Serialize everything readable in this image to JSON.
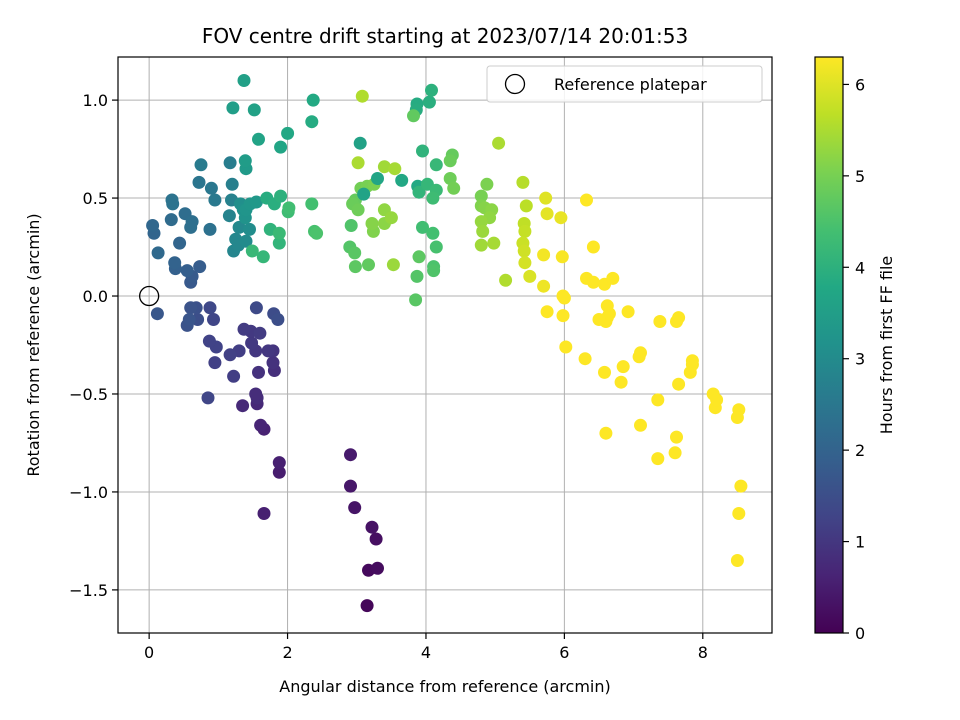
{
  "chart_data": {
    "type": "scatter",
    "title": "FOV centre drift starting at 2023/07/14 20:01:53",
    "xlabel": "Angular distance from reference (arcmin)",
    "ylabel": "Rotation from reference (arcmin)",
    "xlim": [
      -0.45,
      9.0
    ],
    "ylim": [
      -1.72,
      1.22
    ],
    "xticks": [
      0,
      2,
      4,
      6,
      8
    ],
    "xtick_labels": [
      "0",
      "2",
      "4",
      "6",
      "8"
    ],
    "yticks": [
      -1.5,
      -1.0,
      -0.5,
      0.0,
      0.5,
      1.0
    ],
    "ytick_labels": [
      "−1.5",
      "−1.0",
      "−0.5",
      "0.0",
      "0.5",
      "1.0"
    ],
    "grid": true,
    "legend": {
      "position": "upper-right",
      "entries": [
        {
          "label": "Reference platepar",
          "marker": "open-circle",
          "color": "#000000"
        }
      ]
    },
    "reference_point": {
      "x": 0.0,
      "y": 0.0
    },
    "colorbar": {
      "label": "Hours from first FF file",
      "colormap": "viridis",
      "range": [
        0,
        6.3
      ],
      "ticks": [
        0,
        1,
        2,
        3,
        4,
        5,
        6
      ],
      "tick_labels": [
        "0",
        "1",
        "2",
        "3",
        "4",
        "5",
        "6"
      ]
    },
    "points": [
      [
        3.15,
        -1.58,
        0.1
      ],
      [
        3.17,
        -1.4,
        0.15
      ],
      [
        3.3,
        -1.39,
        0.2
      ],
      [
        3.28,
        -1.24,
        0.25
      ],
      [
        3.22,
        -1.18,
        0.3
      ],
      [
        2.97,
        -1.08,
        0.35
      ],
      [
        2.91,
        -0.97,
        0.4
      ],
      [
        2.91,
        -0.81,
        0.45
      ],
      [
        1.88,
        -0.9,
        0.5
      ],
      [
        1.88,
        -0.85,
        0.55
      ],
      [
        1.66,
        -1.11,
        0.55
      ],
      [
        1.66,
        -0.68,
        0.6
      ],
      [
        1.61,
        -0.66,
        0.65
      ],
      [
        1.56,
        -0.55,
        0.7
      ],
      [
        1.35,
        -0.56,
        0.75
      ],
      [
        1.56,
        -0.52,
        0.8
      ],
      [
        1.54,
        -0.5,
        0.8
      ],
      [
        1.81,
        -0.38,
        0.85
      ],
      [
        1.79,
        -0.34,
        0.9
      ],
      [
        1.58,
        -0.39,
        0.9
      ],
      [
        1.79,
        -0.28,
        0.95
      ],
      [
        1.72,
        -0.28,
        1.0
      ],
      [
        1.54,
        -0.28,
        1.0
      ],
      [
        1.48,
        -0.24,
        1.05
      ],
      [
        1.47,
        -0.18,
        1.05
      ],
      [
        1.37,
        -0.17,
        1.1
      ],
      [
        1.6,
        -0.19,
        1.1
      ],
      [
        1.22,
        -0.41,
        1.15
      ],
      [
        1.3,
        -0.28,
        1.15
      ],
      [
        1.17,
        -0.3,
        1.2
      ],
      [
        0.95,
        -0.34,
        1.2
      ],
      [
        0.97,
        -0.26,
        1.25
      ],
      [
        0.87,
        -0.23,
        1.25
      ],
      [
        0.85,
        -0.52,
        1.3
      ],
      [
        0.93,
        -0.12,
        1.3
      ],
      [
        0.88,
        -0.06,
        1.35
      ],
      [
        1.55,
        -0.06,
        1.4
      ],
      [
        1.8,
        -0.09,
        1.45
      ],
      [
        1.86,
        -0.12,
        1.5
      ],
      [
        0.7,
        -0.12,
        1.5
      ],
      [
        0.68,
        -0.06,
        1.55
      ],
      [
        0.6,
        -0.06,
        1.6
      ],
      [
        0.55,
        -0.15,
        1.6
      ],
      [
        0.58,
        -0.12,
        1.65
      ],
      [
        0.12,
        -0.09,
        1.7
      ],
      [
        0.6,
        0.07,
        1.75
      ],
      [
        0.62,
        0.1,
        1.8
      ],
      [
        0.73,
        0.15,
        1.85
      ],
      [
        0.55,
        0.13,
        1.9
      ],
      [
        0.38,
        0.14,
        1.95
      ],
      [
        0.37,
        0.17,
        2.0
      ],
      [
        0.44,
        0.27,
        2.05
      ],
      [
        0.07,
        0.32,
        2.05
      ],
      [
        0.05,
        0.36,
        2.1
      ],
      [
        0.13,
        0.22,
        2.15
      ],
      [
        0.32,
        0.39,
        2.2
      ],
      [
        0.52,
        0.42,
        2.25
      ],
      [
        0.62,
        0.38,
        2.3
      ],
      [
        0.6,
        0.35,
        2.3
      ],
      [
        0.88,
        0.34,
        2.35
      ],
      [
        0.34,
        0.47,
        2.4
      ],
      [
        0.33,
        0.49,
        2.4
      ],
      [
        0.72,
        0.58,
        2.45
      ],
      [
        0.9,
        0.55,
        2.5
      ],
      [
        0.95,
        0.49,
        2.55
      ],
      [
        0.75,
        0.67,
        2.6
      ],
      [
        1.17,
        0.68,
        2.65
      ],
      [
        1.2,
        0.57,
        2.7
      ],
      [
        1.19,
        0.49,
        2.75
      ],
      [
        1.16,
        0.41,
        2.8
      ],
      [
        1.22,
        0.23,
        2.85
      ],
      [
        1.25,
        0.29,
        2.9
      ],
      [
        1.29,
        0.26,
        2.9
      ],
      [
        1.3,
        0.35,
        2.95
      ],
      [
        1.4,
        0.28,
        3.0
      ],
      [
        1.45,
        0.34,
        3.05
      ],
      [
        1.32,
        0.47,
        3.1
      ],
      [
        1.36,
        0.44,
        3.15
      ],
      [
        1.39,
        0.4,
        3.2
      ],
      [
        1.4,
        0.44,
        3.25
      ],
      [
        1.46,
        0.47,
        3.3
      ],
      [
        1.55,
        0.48,
        3.35
      ],
      [
        1.4,
        0.65,
        3.4
      ],
      [
        1.39,
        0.69,
        3.45
      ],
      [
        1.21,
        0.96,
        3.5
      ],
      [
        1.37,
        1.1,
        3.55
      ],
      [
        1.52,
        0.95,
        3.6
      ],
      [
        1.58,
        0.8,
        3.65
      ],
      [
        1.9,
        0.76,
        3.7
      ],
      [
        2.0,
        0.83,
        3.75
      ],
      [
        2.37,
        1.0,
        3.8
      ],
      [
        2.35,
        0.89,
        3.85
      ],
      [
        1.7,
        0.5,
        3.9
      ],
      [
        1.81,
        0.47,
        3.95
      ],
      [
        1.9,
        0.51,
        4.0
      ],
      [
        1.75,
        0.34,
        4.05
      ],
      [
        1.88,
        0.27,
        4.1
      ],
      [
        1.65,
        0.2,
        4.15
      ],
      [
        1.49,
        0.23,
        4.2
      ],
      [
        1.88,
        0.32,
        4.25
      ],
      [
        2.01,
        0.43,
        4.3
      ],
      [
        2.02,
        0.45,
        4.35
      ],
      [
        2.35,
        0.47,
        4.4
      ],
      [
        2.39,
        0.33,
        4.45
      ],
      [
        2.42,
        0.32,
        4.5
      ],
      [
        2.92,
        0.36,
        4.55
      ],
      [
        2.9,
        0.25,
        4.6
      ],
      [
        2.97,
        0.22,
        4.65
      ],
      [
        2.98,
        0.15,
        4.7
      ],
      [
        3.17,
        0.16,
        4.75
      ],
      [
        2.98,
        0.49,
        4.8
      ],
      [
        2.94,
        0.47,
        4.85
      ],
      [
        3.02,
        0.44,
        4.9
      ],
      [
        3.06,
        0.55,
        4.95
      ],
      [
        3.15,
        0.56,
        5.0
      ],
      [
        3.25,
        0.57,
        5.05
      ],
      [
        3.24,
        0.33,
        5.1
      ],
      [
        3.22,
        0.37,
        5.15
      ],
      [
        3.4,
        0.37,
        5.2
      ],
      [
        3.4,
        0.44,
        5.25
      ],
      [
        3.5,
        0.4,
        5.3
      ],
      [
        3.53,
        0.16,
        5.35
      ],
      [
        3.4,
        0.66,
        5.4
      ],
      [
        3.55,
        0.65,
        5.45
      ],
      [
        3.02,
        0.68,
        5.5
      ],
      [
        3.08,
        1.02,
        5.55
      ],
      [
        3.05,
        0.78,
        3.6
      ],
      [
        3.1,
        0.52,
        3.65
      ],
      [
        3.3,
        0.6,
        3.7
      ],
      [
        3.65,
        0.59,
        3.75
      ],
      [
        3.88,
        0.56,
        3.8
      ],
      [
        3.87,
        0.98,
        3.85
      ],
      [
        3.86,
        0.95,
        3.9
      ],
      [
        4.05,
        0.99,
        3.95
      ],
      [
        4.08,
        1.05,
        4.0
      ],
      [
        3.95,
        0.74,
        4.05
      ],
      [
        3.9,
        0.53,
        4.1
      ],
      [
        4.02,
        0.57,
        4.15
      ],
      [
        4.15,
        0.67,
        4.2
      ],
      [
        4.15,
        0.54,
        4.25
      ],
      [
        4.1,
        0.5,
        4.3
      ],
      [
        3.95,
        0.35,
        4.35
      ],
      [
        4.1,
        0.32,
        4.4
      ],
      [
        4.15,
        0.25,
        4.45
      ],
      [
        4.11,
        0.15,
        4.5
      ],
      [
        4.11,
        0.13,
        4.55
      ],
      [
        3.87,
        0.1,
        4.6
      ],
      [
        3.85,
        -0.02,
        4.65
      ],
      [
        3.9,
        0.2,
        4.7
      ],
      [
        3.82,
        0.92,
        4.75
      ],
      [
        4.38,
        0.72,
        4.8
      ],
      [
        4.35,
        0.69,
        4.85
      ],
      [
        4.35,
        0.6,
        4.9
      ],
      [
        4.4,
        0.55,
        4.95
      ],
      [
        4.8,
        0.51,
        5.0
      ],
      [
        4.88,
        0.57,
        5.05
      ],
      [
        4.8,
        0.46,
        5.1
      ],
      [
        4.85,
        0.45,
        5.15
      ],
      [
        4.95,
        0.44,
        5.2
      ],
      [
        4.92,
        0.4,
        5.25
      ],
      [
        4.8,
        0.38,
        5.3
      ],
      [
        4.82,
        0.33,
        5.35
      ],
      [
        4.8,
        0.26,
        5.4
      ],
      [
        4.98,
        0.27,
        5.45
      ],
      [
        5.05,
        0.78,
        5.5
      ],
      [
        5.15,
        0.08,
        5.55
      ],
      [
        5.4,
        0.58,
        5.6
      ],
      [
        5.45,
        0.46,
        5.65
      ],
      [
        5.42,
        0.37,
        5.7
      ],
      [
        5.43,
        0.33,
        5.75
      ],
      [
        5.4,
        0.27,
        5.8
      ],
      [
        5.42,
        0.23,
        5.85
      ],
      [
        5.43,
        0.17,
        5.9
      ],
      [
        5.5,
        0.1,
        5.95
      ],
      [
        5.73,
        0.5,
        6.0
      ],
      [
        5.75,
        0.42,
        6.05
      ],
      [
        5.95,
        0.4,
        6.1
      ],
      [
        5.7,
        0.05,
        6.15
      ],
      [
        5.7,
        0.21,
        6.2
      ],
      [
        5.97,
        0.2,
        6.25
      ],
      [
        5.98,
        0.0,
        6.3
      ],
      [
        6.0,
        -0.01,
        6.35
      ],
      [
        5.75,
        -0.08,
        6.4
      ],
      [
        5.98,
        -0.1,
        6.45
      ],
      [
        6.02,
        -0.26,
        6.5
      ],
      [
        6.32,
        0.49,
        6.55
      ],
      [
        6.42,
        0.25,
        6.6
      ],
      [
        6.32,
        0.09,
        6.65
      ],
      [
        6.42,
        0.07,
        6.7
      ],
      [
        6.58,
        0.06,
        6.75
      ],
      [
        6.62,
        -0.05,
        6.8
      ],
      [
        6.6,
        -0.13,
        6.85
      ],
      [
        6.7,
        0.09,
        6.9
      ],
      [
        6.62,
        -0.11,
        6.95
      ],
      [
        6.65,
        -0.09,
        7.0
      ],
      [
        6.5,
        -0.12,
        7.05
      ],
      [
        6.3,
        -0.32,
        7.1
      ],
      [
        6.58,
        -0.39,
        7.15
      ],
      [
        6.85,
        -0.36,
        7.2
      ],
      [
        6.92,
        -0.08,
        7.25
      ],
      [
        7.1,
        -0.29,
        7.3
      ],
      [
        7.08,
        -0.31,
        7.35
      ],
      [
        6.82,
        -0.44,
        7.4
      ],
      [
        6.6,
        -0.7,
        7.45
      ],
      [
        7.1,
        -0.66,
        7.5
      ],
      [
        7.35,
        -0.53,
        7.55
      ],
      [
        7.38,
        -0.13,
        7.6
      ],
      [
        7.65,
        -0.11,
        7.65
      ],
      [
        7.62,
        -0.13,
        7.7
      ],
      [
        7.65,
        -0.45,
        7.75
      ],
      [
        7.82,
        -0.39,
        7.8
      ],
      [
        7.85,
        -0.35,
        7.85
      ],
      [
        7.85,
        -0.33,
        7.9
      ],
      [
        7.62,
        -0.72,
        7.95
      ],
      [
        7.6,
        -0.8,
        8.0
      ],
      [
        7.35,
        -0.83,
        8.05
      ],
      [
        8.15,
        -0.5,
        8.1
      ],
      [
        8.18,
        -0.57,
        8.15
      ],
      [
        8.2,
        -0.53,
        8.2
      ],
      [
        8.52,
        -0.58,
        8.25
      ],
      [
        8.5,
        -0.62,
        8.3
      ],
      [
        8.55,
        -0.97,
        8.35
      ],
      [
        8.52,
        -1.11,
        8.4
      ],
      [
        8.5,
        -1.35,
        8.45
      ]
    ]
  }
}
